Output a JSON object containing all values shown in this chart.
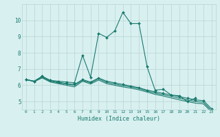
{
  "xlabel": "Humidex (Indice chaleur)",
  "x": [
    0,
    1,
    2,
    3,
    4,
    5,
    6,
    7,
    8,
    9,
    10,
    11,
    12,
    13,
    14,
    15,
    16,
    17,
    18,
    19,
    20,
    21,
    22,
    23
  ],
  "line1": [
    6.35,
    6.25,
    6.55,
    6.3,
    6.25,
    6.2,
    6.15,
    7.85,
    6.5,
    9.2,
    8.95,
    9.35,
    10.5,
    9.8,
    9.8,
    7.15,
    5.7,
    5.75,
    5.4,
    5.35,
    5.0,
    5.2,
    null,
    null
  ],
  "line2": [
    6.35,
    6.25,
    6.55,
    6.3,
    6.2,
    6.1,
    6.05,
    6.35,
    6.2,
    6.45,
    6.25,
    6.15,
    6.05,
    5.95,
    5.85,
    5.7,
    5.6,
    5.5,
    5.4,
    5.3,
    5.2,
    5.1,
    5.05,
    4.55
  ],
  "line3": [
    6.35,
    6.25,
    6.5,
    6.25,
    6.15,
    6.08,
    6.0,
    6.3,
    6.15,
    6.4,
    6.18,
    6.08,
    5.98,
    5.9,
    5.8,
    5.65,
    5.52,
    5.42,
    5.32,
    5.2,
    5.1,
    5.0,
    4.95,
    4.45
  ],
  "line4": [
    6.35,
    6.22,
    6.45,
    6.2,
    6.1,
    6.0,
    5.9,
    6.25,
    6.08,
    6.32,
    6.1,
    6.0,
    5.9,
    5.82,
    5.72,
    5.58,
    5.44,
    5.34,
    5.22,
    5.1,
    5.0,
    4.9,
    4.85,
    4.35
  ],
  "color": "#1a7a6e",
  "bg_color": "#d8f0f0",
  "grid_color": "#b8d4d4",
  "ylim": [
    4.5,
    11.0
  ],
  "xlim": [
    -0.5,
    23.5
  ],
  "yticks": [
    5,
    6,
    7,
    8,
    9,
    10
  ],
  "xticks": [
    0,
    1,
    2,
    3,
    4,
    5,
    6,
    7,
    8,
    9,
    10,
    11,
    12,
    13,
    14,
    15,
    16,
    17,
    18,
    19,
    20,
    21,
    22,
    23
  ]
}
